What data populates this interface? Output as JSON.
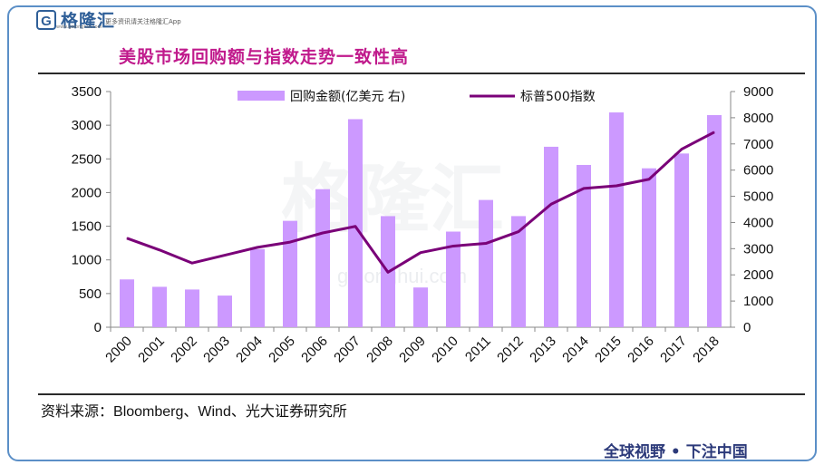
{
  "header": {
    "logo_letter": "G",
    "logo_text": "格隆汇",
    "logo_tagline": "更多资讯请关注格隆汇App",
    "logo_url": "www.gelonghui.com"
  },
  "watermark": {
    "text": "格隆汇",
    "url": "gelonghui.com"
  },
  "chart_data": {
    "type": "bar+line",
    "title": "美股市场回购额与指数走势一致性高",
    "categories": [
      "2000",
      "2001",
      "2002",
      "2003",
      "2004",
      "2005",
      "2006",
      "2007",
      "2008",
      "2009",
      "2010",
      "2011",
      "2012",
      "2013",
      "2014",
      "2015",
      "2016",
      "2017",
      "2018"
    ],
    "series": [
      {
        "name": "回购金额(亿美元 右)",
        "type": "bar",
        "axis": "left",
        "color": "#cc99ff",
        "values": [
          710,
          600,
          560,
          470,
          1160,
          1580,
          2050,
          3090,
          1650,
          590,
          1420,
          1890,
          1650,
          2680,
          2410,
          3190,
          2360,
          2580,
          3150
        ]
      },
      {
        "name": "标普500指数",
        "type": "line",
        "axis": "right",
        "color": "#7a0078",
        "values": [
          3400,
          2950,
          2450,
          2750,
          3050,
          3250,
          3600,
          3850,
          2100,
          2850,
          3100,
          3200,
          3650,
          4700,
          5300,
          5400,
          5650,
          6800,
          7450
        ]
      }
    ],
    "y_left": {
      "min": 0,
      "max": 3500,
      "ticks": [
        0,
        500,
        1000,
        1500,
        2000,
        2500,
        3000,
        3500
      ]
    },
    "y_right": {
      "min": 0,
      "max": 9000,
      "ticks": [
        0,
        1000,
        2000,
        3000,
        4000,
        5000,
        6000,
        7000,
        8000,
        9000
      ]
    },
    "legend_position": "top",
    "grid": false
  },
  "source": {
    "label": "资料来源：",
    "text": "Bloomberg、Wind、",
    "org": "光大证券研究所"
  },
  "footer": {
    "text": "全球视野 • 下注中国"
  }
}
